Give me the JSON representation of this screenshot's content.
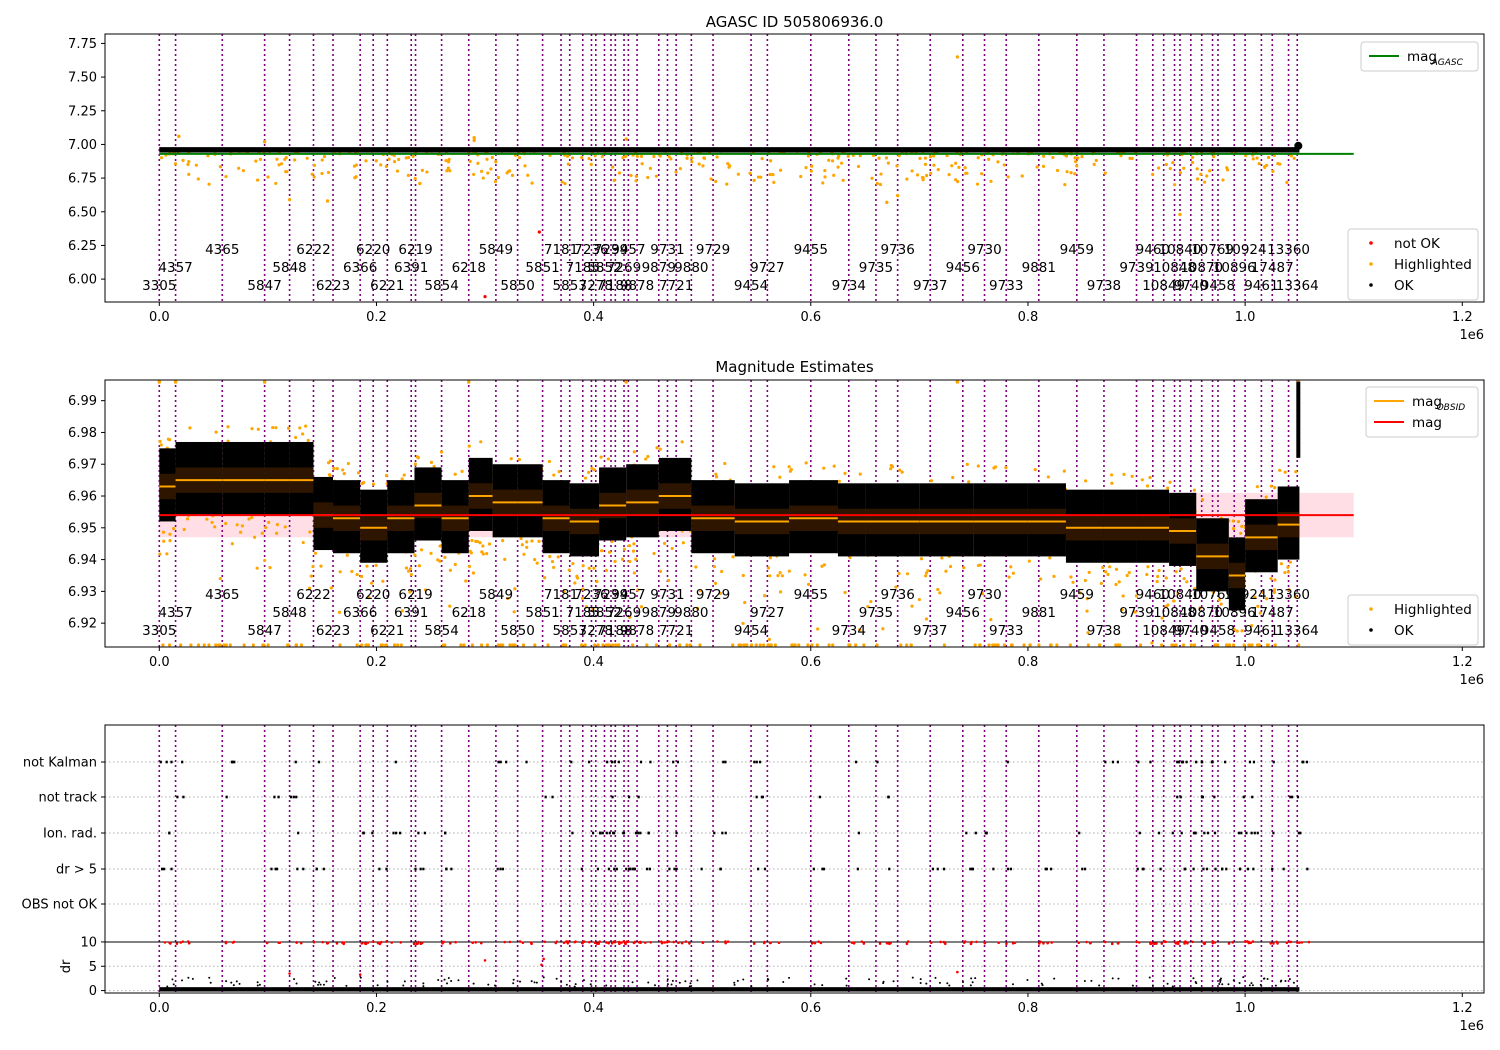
{
  "colors": {
    "obs_line": "#800080",
    "highlighted": "#ffa500",
    "ok": "#000000",
    "not_ok": "#ff0000",
    "mag_agasc": "#008000",
    "mag": "#ff0000",
    "mag_obsid": "#ffa500",
    "band": "#ffc0cb"
  },
  "chart_data": [
    {
      "type": "scatter",
      "title": "AGASC ID 505806936.0",
      "x_offset_label": "1e6",
      "xlim": [
        -0.05,
        1.22
      ],
      "ylim": [
        5.83,
        7.82
      ],
      "xticks": [
        {
          "v": 0.0,
          "label": "0.0"
        },
        {
          "v": 0.2,
          "label": "0.2"
        },
        {
          "v": 0.4,
          "label": "0.4"
        },
        {
          "v": 0.6,
          "label": "0.6"
        },
        {
          "v": 0.8,
          "label": "0.8"
        },
        {
          "v": 1.0,
          "label": "1.0"
        },
        {
          "v": 1.2,
          "label": "1.2"
        }
      ],
      "yticks": [
        {
          "v": 6.0,
          "label": "6.00"
        },
        {
          "v": 6.25,
          "label": "6.25"
        },
        {
          "v": 6.5,
          "label": "6.50"
        },
        {
          "v": 6.75,
          "label": "6.75"
        },
        {
          "v": 7.0,
          "label": "7.00"
        },
        {
          "v": 7.25,
          "label": "7.25"
        },
        {
          "v": 7.5,
          "label": "7.50"
        },
        {
          "v": 7.75,
          "label": "7.75"
        }
      ],
      "mag_agasc": 6.93,
      "ok_level": 6.96,
      "legend_upper": [
        {
          "label": "mag",
          "sub": "AGASC",
          "kind": "line",
          "color": "#008000"
        }
      ],
      "legend_lower": [
        {
          "label": "not OK",
          "kind": "dot",
          "color": "#ff0000"
        },
        {
          "label": "Highlighted",
          "kind": "dot",
          "color": "#ffa500"
        },
        {
          "label": "OK",
          "kind": "dot",
          "color": "#000000"
        }
      ]
    },
    {
      "type": "scatter",
      "title": "Magnitude Estimates",
      "x_offset_label": "1e6",
      "xlim": [
        -0.05,
        1.22
      ],
      "ylim": [
        6.9125,
        6.9965
      ],
      "xticks": [
        {
          "v": 0.0,
          "label": "0.0"
        },
        {
          "v": 0.2,
          "label": "0.2"
        },
        {
          "v": 0.4,
          "label": "0.4"
        },
        {
          "v": 0.6,
          "label": "0.6"
        },
        {
          "v": 0.8,
          "label": "0.8"
        },
        {
          "v": 1.0,
          "label": "1.0"
        },
        {
          "v": 1.2,
          "label": "1.2"
        }
      ],
      "yticks": [
        {
          "v": 6.92,
          "label": "6.92"
        },
        {
          "v": 6.93,
          "label": "6.93"
        },
        {
          "v": 6.94,
          "label": "6.94"
        },
        {
          "v": 6.95,
          "label": "6.95"
        },
        {
          "v": 6.96,
          "label": "6.96"
        },
        {
          "v": 6.97,
          "label": "6.97"
        },
        {
          "v": 6.98,
          "label": "6.98"
        },
        {
          "v": 6.99,
          "label": "6.99"
        }
      ],
      "mag": 6.954,
      "mag_band": [
        6.947,
        6.961
      ],
      "obsid_mags": [
        {
          "x0": 0.0,
          "x1": 0.015,
          "m": 6.963
        },
        {
          "x0": 0.015,
          "x1": 0.058,
          "m": 6.965
        },
        {
          "x0": 0.058,
          "x1": 0.097,
          "m": 6.965
        },
        {
          "x0": 0.097,
          "x1": 0.12,
          "m": 6.965
        },
        {
          "x0": 0.12,
          "x1": 0.142,
          "m": 6.965
        },
        {
          "x0": 0.142,
          "x1": 0.16,
          "m": 6.954
        },
        {
          "x0": 0.16,
          "x1": 0.185,
          "m": 6.953
        },
        {
          "x0": 0.185,
          "x1": 0.21,
          "m": 6.95
        },
        {
          "x0": 0.21,
          "x1": 0.235,
          "m": 6.953
        },
        {
          "x0": 0.235,
          "x1": 0.26,
          "m": 6.957
        },
        {
          "x0": 0.26,
          "x1": 0.285,
          "m": 6.953
        },
        {
          "x0": 0.285,
          "x1": 0.307,
          "m": 6.96
        },
        {
          "x0": 0.307,
          "x1": 0.33,
          "m": 6.958
        },
        {
          "x0": 0.33,
          "x1": 0.353,
          "m": 6.958
        },
        {
          "x0": 0.353,
          "x1": 0.378,
          "m": 6.953
        },
        {
          "x0": 0.378,
          "x1": 0.405,
          "m": 6.952
        },
        {
          "x0": 0.405,
          "x1": 0.43,
          "m": 6.957
        },
        {
          "x0": 0.43,
          "x1": 0.46,
          "m": 6.958
        },
        {
          "x0": 0.46,
          "x1": 0.49,
          "m": 6.96
        },
        {
          "x0": 0.49,
          "x1": 0.53,
          "m": 6.953
        },
        {
          "x0": 0.53,
          "x1": 0.58,
          "m": 6.952
        },
        {
          "x0": 0.58,
          "x1": 0.625,
          "m": 6.953
        },
        {
          "x0": 0.625,
          "x1": 0.65,
          "m": 6.952
        },
        {
          "x0": 0.65,
          "x1": 0.7,
          "m": 6.952
        },
        {
          "x0": 0.7,
          "x1": 0.75,
          "m": 6.952
        },
        {
          "x0": 0.75,
          "x1": 0.8,
          "m": 6.952
        },
        {
          "x0": 0.8,
          "x1": 0.835,
          "m": 6.952
        },
        {
          "x0": 0.835,
          "x1": 0.87,
          "m": 6.95
        },
        {
          "x0": 0.87,
          "x1": 0.9,
          "m": 6.95
        },
        {
          "x0": 0.9,
          "x1": 0.93,
          "m": 6.95
        },
        {
          "x0": 0.93,
          "x1": 0.955,
          "m": 6.949
        },
        {
          "x0": 0.955,
          "x1": 0.985,
          "m": 6.941
        },
        {
          "x0": 0.985,
          "x1": 1.0,
          "m": 6.935
        },
        {
          "x0": 1.0,
          "x1": 1.03,
          "m": 6.947
        },
        {
          "x0": 1.03,
          "x1": 1.05,
          "m": 6.951
        }
      ],
      "legend_upper": [
        {
          "label": "mag",
          "sub": "OBSID",
          "kind": "line",
          "color": "#ffa500"
        },
        {
          "label": "mag",
          "kind": "line",
          "color": "#ff0000"
        }
      ],
      "legend_lower": [
        {
          "label": "Highlighted",
          "kind": "dot",
          "color": "#ffa500"
        },
        {
          "label": "OK",
          "kind": "dot",
          "color": "#000000"
        }
      ]
    },
    {
      "type": "scatter",
      "title": "",
      "x_offset_label": "1e6",
      "xlim": [
        -0.05,
        1.22
      ],
      "xticks": [
        {
          "v": 0.0,
          "label": "0.0"
        },
        {
          "v": 0.2,
          "label": "0.2"
        },
        {
          "v": 0.4,
          "label": "0.4"
        },
        {
          "v": 0.6,
          "label": "0.6"
        },
        {
          "v": 0.8,
          "label": "0.8"
        },
        {
          "v": 1.0,
          "label": "1.0"
        },
        {
          "v": 1.2,
          "label": "1.2"
        }
      ],
      "flag_rows": [
        "not Kalman",
        "not track",
        "Ion. rad.",
        "dr > 5",
        "OBS not OK"
      ],
      "dr_ylabel": "dr",
      "dr_yticks": [
        {
          "v": 0,
          "label": "0"
        },
        {
          "v": 5,
          "label": "5"
        },
        {
          "v": 10,
          "label": "10"
        }
      ],
      "dr_ylim": [
        -0.5,
        10.4
      ]
    }
  ],
  "obsids": [
    {
      "x": 0.0,
      "label": "3305"
    },
    {
      "x": 0.015,
      "label": "4357"
    },
    {
      "x": 0.058,
      "label": "4365"
    },
    {
      "x": 0.097,
      "label": "5847"
    },
    {
      "x": 0.12,
      "label": "5848"
    },
    {
      "x": 0.142,
      "label": "6222"
    },
    {
      "x": 0.16,
      "label": "6223"
    },
    {
      "x": 0.185,
      "label": "6366"
    },
    {
      "x": 0.197,
      "label": "6220"
    },
    {
      "x": 0.21,
      "label": "6221"
    },
    {
      "x": 0.232,
      "label": "6391"
    },
    {
      "x": 0.236,
      "label": "6219"
    },
    {
      "x": 0.26,
      "label": "5854"
    },
    {
      "x": 0.285,
      "label": "6218"
    },
    {
      "x": 0.31,
      "label": "5849"
    },
    {
      "x": 0.33,
      "label": "5850"
    },
    {
      "x": 0.353,
      "label": "5851"
    },
    {
      "x": 0.37,
      "label": "7181"
    },
    {
      "x": 0.378,
      "label": "5853"
    },
    {
      "x": 0.39,
      "label": "7185"
    },
    {
      "x": 0.398,
      "label": "7236"
    },
    {
      "x": 0.402,
      "label": "7278"
    },
    {
      "x": 0.41,
      "label": "5852"
    },
    {
      "x": 0.416,
      "label": "7239"
    },
    {
      "x": 0.42,
      "label": "7188"
    },
    {
      "x": 0.428,
      "label": "7269"
    },
    {
      "x": 0.432,
      "label": "9457"
    },
    {
      "x": 0.44,
      "label": "9878"
    },
    {
      "x": 0.46,
      "label": "9879"
    },
    {
      "x": 0.468,
      "label": "9731"
    },
    {
      "x": 0.476,
      "label": "7721"
    },
    {
      "x": 0.49,
      "label": "9880"
    },
    {
      "x": 0.51,
      "label": "9729"
    },
    {
      "x": 0.545,
      "label": "9454"
    },
    {
      "x": 0.56,
      "label": "9727"
    },
    {
      "x": 0.6,
      "label": "9455"
    },
    {
      "x": 0.635,
      "label": "9734"
    },
    {
      "x": 0.66,
      "label": "9735"
    },
    {
      "x": 0.68,
      "label": "9736"
    },
    {
      "x": 0.71,
      "label": "9737"
    },
    {
      "x": 0.74,
      "label": "9456"
    },
    {
      "x": 0.76,
      "label": "9730"
    },
    {
      "x": 0.78,
      "label": "9733"
    },
    {
      "x": 0.81,
      "label": "9881"
    },
    {
      "x": 0.845,
      "label": "9459"
    },
    {
      "x": 0.87,
      "label": "9738"
    },
    {
      "x": 0.9,
      "label": "9739"
    },
    {
      "x": 0.915,
      "label": "9460"
    },
    {
      "x": 0.925,
      "label": "10849"
    },
    {
      "x": 0.935,
      "label": "10848"
    },
    {
      "x": 0.94,
      "label": "10840"
    },
    {
      "x": 0.95,
      "label": "9740"
    },
    {
      "x": 0.96,
      "label": "10870"
    },
    {
      "x": 0.97,
      "label": "10769"
    },
    {
      "x": 0.975,
      "label": "9458"
    },
    {
      "x": 0.99,
      "label": "10896"
    },
    {
      "x": 1.0,
      "label": "10924"
    },
    {
      "x": 1.015,
      "label": "9461"
    },
    {
      "x": 1.025,
      "label": "17487"
    },
    {
      "x": 1.04,
      "label": "13360"
    },
    {
      "x": 1.048,
      "label": "13364"
    }
  ]
}
